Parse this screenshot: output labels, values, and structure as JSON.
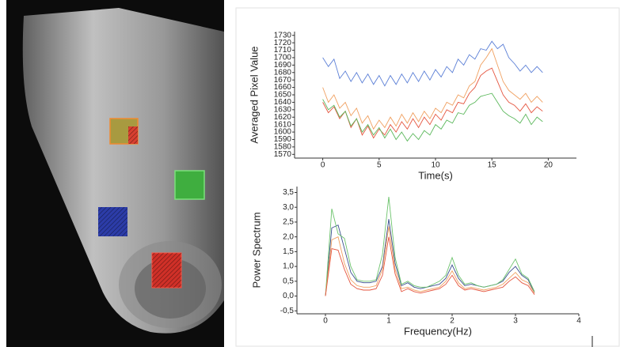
{
  "chart_data": [
    {
      "type": "line",
      "ylabel": "Averaged Pixel Value",
      "xlabel": "Time(s)",
      "x": [
        0,
        0.5,
        1,
        1.5,
        2,
        2.5,
        3,
        3.5,
        4,
        4.5,
        5,
        5.5,
        6,
        6.5,
        7,
        7.5,
        8,
        8.5,
        9,
        9.5,
        10,
        10.5,
        11,
        11.5,
        12,
        12.5,
        13,
        13.5,
        14,
        14.5,
        15,
        15.5,
        16,
        16.5,
        17,
        17.5,
        18,
        18.5,
        19,
        19.5
      ],
      "series": [
        {
          "color": "#5b7fd6",
          "values": [
            1700,
            1688,
            1698,
            1672,
            1682,
            1668,
            1680,
            1666,
            1678,
            1664,
            1676,
            1662,
            1676,
            1664,
            1678,
            1666,
            1680,
            1668,
            1682,
            1670,
            1684,
            1674,
            1688,
            1680,
            1698,
            1690,
            1704,
            1698,
            1712,
            1710,
            1722,
            1712,
            1718,
            1700,
            1692,
            1682,
            1690,
            1680,
            1688,
            1680
          ]
        },
        {
          "color": "#f0a060",
          "values": [
            1660,
            1640,
            1650,
            1632,
            1640,
            1622,
            1632,
            1612,
            1622,
            1604,
            1616,
            1606,
            1620,
            1608,
            1624,
            1612,
            1626,
            1614,
            1628,
            1618,
            1632,
            1626,
            1640,
            1636,
            1650,
            1646,
            1662,
            1668,
            1690,
            1700,
            1712,
            1690,
            1668,
            1656,
            1650,
            1644,
            1652,
            1640,
            1648,
            1640
          ]
        },
        {
          "color": "#e5553f",
          "values": [
            1640,
            1626,
            1634,
            1618,
            1628,
            1606,
            1618,
            1596,
            1608,
            1592,
            1604,
            1596,
            1610,
            1600,
            1614,
            1604,
            1618,
            1606,
            1620,
            1610,
            1624,
            1616,
            1630,
            1626,
            1640,
            1638,
            1652,
            1660,
            1676,
            1682,
            1686,
            1668,
            1650,
            1640,
            1636,
            1628,
            1638,
            1626,
            1634,
            1628
          ]
        },
        {
          "color": "#5cb85c",
          "values": [
            1644,
            1630,
            1636,
            1620,
            1628,
            1608,
            1618,
            1600,
            1610,
            1596,
            1606,
            1592,
            1604,
            1590,
            1600,
            1588,
            1598,
            1590,
            1602,
            1596,
            1610,
            1604,
            1616,
            1612,
            1626,
            1624,
            1636,
            1640,
            1648,
            1650,
            1652,
            1640,
            1628,
            1622,
            1618,
            1612,
            1624,
            1610,
            1620,
            1614
          ]
        }
      ],
      "xlim": [
        -2.5,
        22.5
      ],
      "xticks": [
        0,
        5,
        10,
        15,
        20
      ],
      "ylim": [
        1565,
        1735
      ],
      "yticks": [
        1570,
        1580,
        1590,
        1600,
        1610,
        1620,
        1630,
        1640,
        1650,
        1660,
        1670,
        1680,
        1690,
        1700,
        1710,
        1720,
        1730
      ]
    },
    {
      "type": "line",
      "ylabel": "Power Spectrum",
      "xlabel": "Frequency(Hz)",
      "x": [
        0,
        0.1,
        0.2,
        0.3,
        0.4,
        0.5,
        0.6,
        0.7,
        0.8,
        0.9,
        1,
        1.1,
        1.2,
        1.3,
        1.4,
        1.5,
        1.6,
        1.7,
        1.8,
        1.9,
        2,
        2.1,
        2.2,
        2.3,
        2.4,
        2.5,
        2.6,
        2.7,
        2.8,
        2.9,
        3,
        3.1,
        3.2,
        3.3
      ],
      "series": [
        {
          "color": "#3a4f8f",
          "values": [
            0,
            2.3,
            2.4,
            1.6,
            0.8,
            0.5,
            0.45,
            0.45,
            0.5,
            1.0,
            2.6,
            1.1,
            0.35,
            0.45,
            0.3,
            0.25,
            0.3,
            0.35,
            0.4,
            0.6,
            1.05,
            0.6,
            0.35,
            0.4,
            0.35,
            0.3,
            0.35,
            0.4,
            0.5,
            0.8,
            1.0,
            0.7,
            0.55,
            0.1
          ]
        },
        {
          "color": "#6cc36c",
          "values": [
            0,
            2.95,
            2.1,
            1.95,
            1.0,
            0.55,
            0.5,
            0.5,
            0.55,
            1.4,
            3.35,
            1.3,
            0.4,
            0.5,
            0.35,
            0.3,
            0.3,
            0.4,
            0.5,
            0.7,
            1.3,
            0.7,
            0.4,
            0.45,
            0.35,
            0.3,
            0.35,
            0.4,
            0.55,
            0.9,
            1.25,
            0.75,
            0.6,
            0.15
          ]
        },
        {
          "color": "#f0a060",
          "values": [
            0,
            1.9,
            2.0,
            1.1,
            0.55,
            0.35,
            0.3,
            0.3,
            0.35,
            0.9,
            2.35,
            0.9,
            0.25,
            0.3,
            0.2,
            0.15,
            0.2,
            0.25,
            0.3,
            0.5,
            0.85,
            0.45,
            0.25,
            0.3,
            0.25,
            0.2,
            0.25,
            0.3,
            0.4,
            0.6,
            0.8,
            0.55,
            0.45,
            0.1
          ]
        },
        {
          "color": "#e5553f",
          "values": [
            0,
            1.6,
            1.55,
            0.9,
            0.4,
            0.25,
            0.2,
            0.2,
            0.25,
            0.7,
            2.0,
            0.75,
            0.15,
            0.25,
            0.15,
            0.1,
            0.15,
            0.2,
            0.25,
            0.4,
            0.7,
            0.35,
            0.2,
            0.25,
            0.2,
            0.15,
            0.2,
            0.25,
            0.3,
            0.5,
            0.65,
            0.45,
            0.35,
            0.05
          ]
        }
      ],
      "xlim": [
        -0.45,
        4
      ],
      "xticks": [
        0,
        1,
        2,
        3,
        4
      ],
      "ylim": [
        -0.6,
        3.7
      ],
      "yticks": [
        {
          "value": -0.5,
          "label": "-0,5"
        },
        {
          "value": 0,
          "label": "0,0"
        },
        {
          "value": 0.5,
          "label": "0,5"
        },
        {
          "value": 1,
          "label": "1,0"
        },
        {
          "value": 1.5,
          "label": "1,5"
        },
        {
          "value": 2,
          "label": "2,0"
        },
        {
          "value": 2.5,
          "label": "2,5"
        },
        {
          "value": 3,
          "label": "3,0"
        },
        {
          "value": 3.5,
          "label": "3,5"
        }
      ]
    }
  ]
}
